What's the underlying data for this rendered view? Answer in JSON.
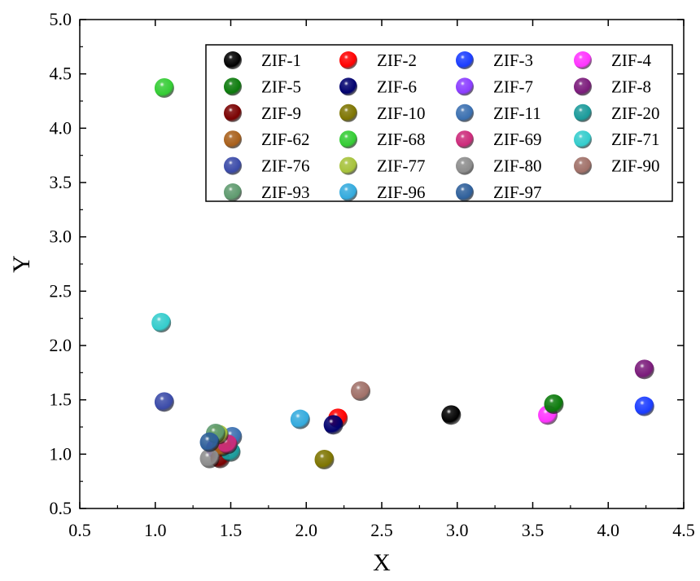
{
  "chart_data": {
    "type": "scatter",
    "xlabel": "X",
    "ylabel": "Y",
    "xlim": [
      0.5,
      4.5
    ],
    "ylim": [
      0.5,
      5.0
    ],
    "xticks": [
      "0.5",
      "1.0",
      "1.5",
      "2.0",
      "2.5",
      "3.0",
      "3.5",
      "4.0",
      "4.5"
    ],
    "yticks": [
      "0.5",
      "1.0",
      "1.5",
      "2.0",
      "2.5",
      "3.0",
      "3.5",
      "4.0",
      "4.5",
      "5.0"
    ],
    "grid": false,
    "legend_position": "top-right",
    "series": [
      {
        "name": "ZIF-1",
        "color": "#000000",
        "x": 2.96,
        "y": 1.36
      },
      {
        "name": "ZIF-2",
        "color": "#ff0000",
        "x": 2.21,
        "y": 1.33
      },
      {
        "name": "ZIF-3",
        "color": "#1a3cff",
        "x": 4.24,
        "y": 1.44
      },
      {
        "name": "ZIF-4",
        "color": "#ff33ff",
        "x": 3.6,
        "y": 1.36
      },
      {
        "name": "ZIF-5",
        "color": "#0b7a0b",
        "x": 3.64,
        "y": 1.46
      },
      {
        "name": "ZIF-6",
        "color": "#00006e",
        "x": 2.18,
        "y": 1.27
      },
      {
        "name": "ZIF-7",
        "color": "#8a3cff",
        "x": 1.4,
        "y": 1.05
      },
      {
        "name": "ZIF-8",
        "color": "#7a1a7a",
        "x": 4.24,
        "y": 1.78
      },
      {
        "name": "ZIF-9",
        "color": "#7a0000",
        "x": 1.43,
        "y": 0.96
      },
      {
        "name": "ZIF-10",
        "color": "#7d7400",
        "x": 2.12,
        "y": 0.95
      },
      {
        "name": "ZIF-11",
        "color": "#3a6fb0",
        "x": 1.51,
        "y": 1.16
      },
      {
        "name": "ZIF-20",
        "color": "#1a9a9a",
        "x": 1.5,
        "y": 1.02
      },
      {
        "name": "ZIF-62",
        "color": "#a85f1a",
        "x": 1.44,
        "y": 1.07
      },
      {
        "name": "ZIF-68",
        "color": "#33cc33",
        "x": 1.06,
        "y": 4.37
      },
      {
        "name": "ZIF-69",
        "color": "#cc2a7a",
        "x": 1.48,
        "y": 1.09
      },
      {
        "name": "ZIF-71",
        "color": "#33cccc",
        "x": 1.04,
        "y": 2.21
      },
      {
        "name": "ZIF-76",
        "color": "#3a4aa8",
        "x": 1.06,
        "y": 1.48
      },
      {
        "name": "ZIF-77",
        "color": "#a6c23a",
        "x": 1.42,
        "y": 1.18
      },
      {
        "name": "ZIF-80",
        "color": "#8c8c8c",
        "x": 1.36,
        "y": 0.96
      },
      {
        "name": "ZIF-90",
        "color": "#a07068",
        "x": 2.36,
        "y": 1.58
      },
      {
        "name": "ZIF-93",
        "color": "#5e9a6e",
        "x": 1.4,
        "y": 1.19
      },
      {
        "name": "ZIF-96",
        "color": "#33aadd",
        "x": 1.96,
        "y": 1.32
      },
      {
        "name": "ZIF-97",
        "color": "#2e5f9a",
        "x": 1.36,
        "y": 1.11
      }
    ]
  }
}
